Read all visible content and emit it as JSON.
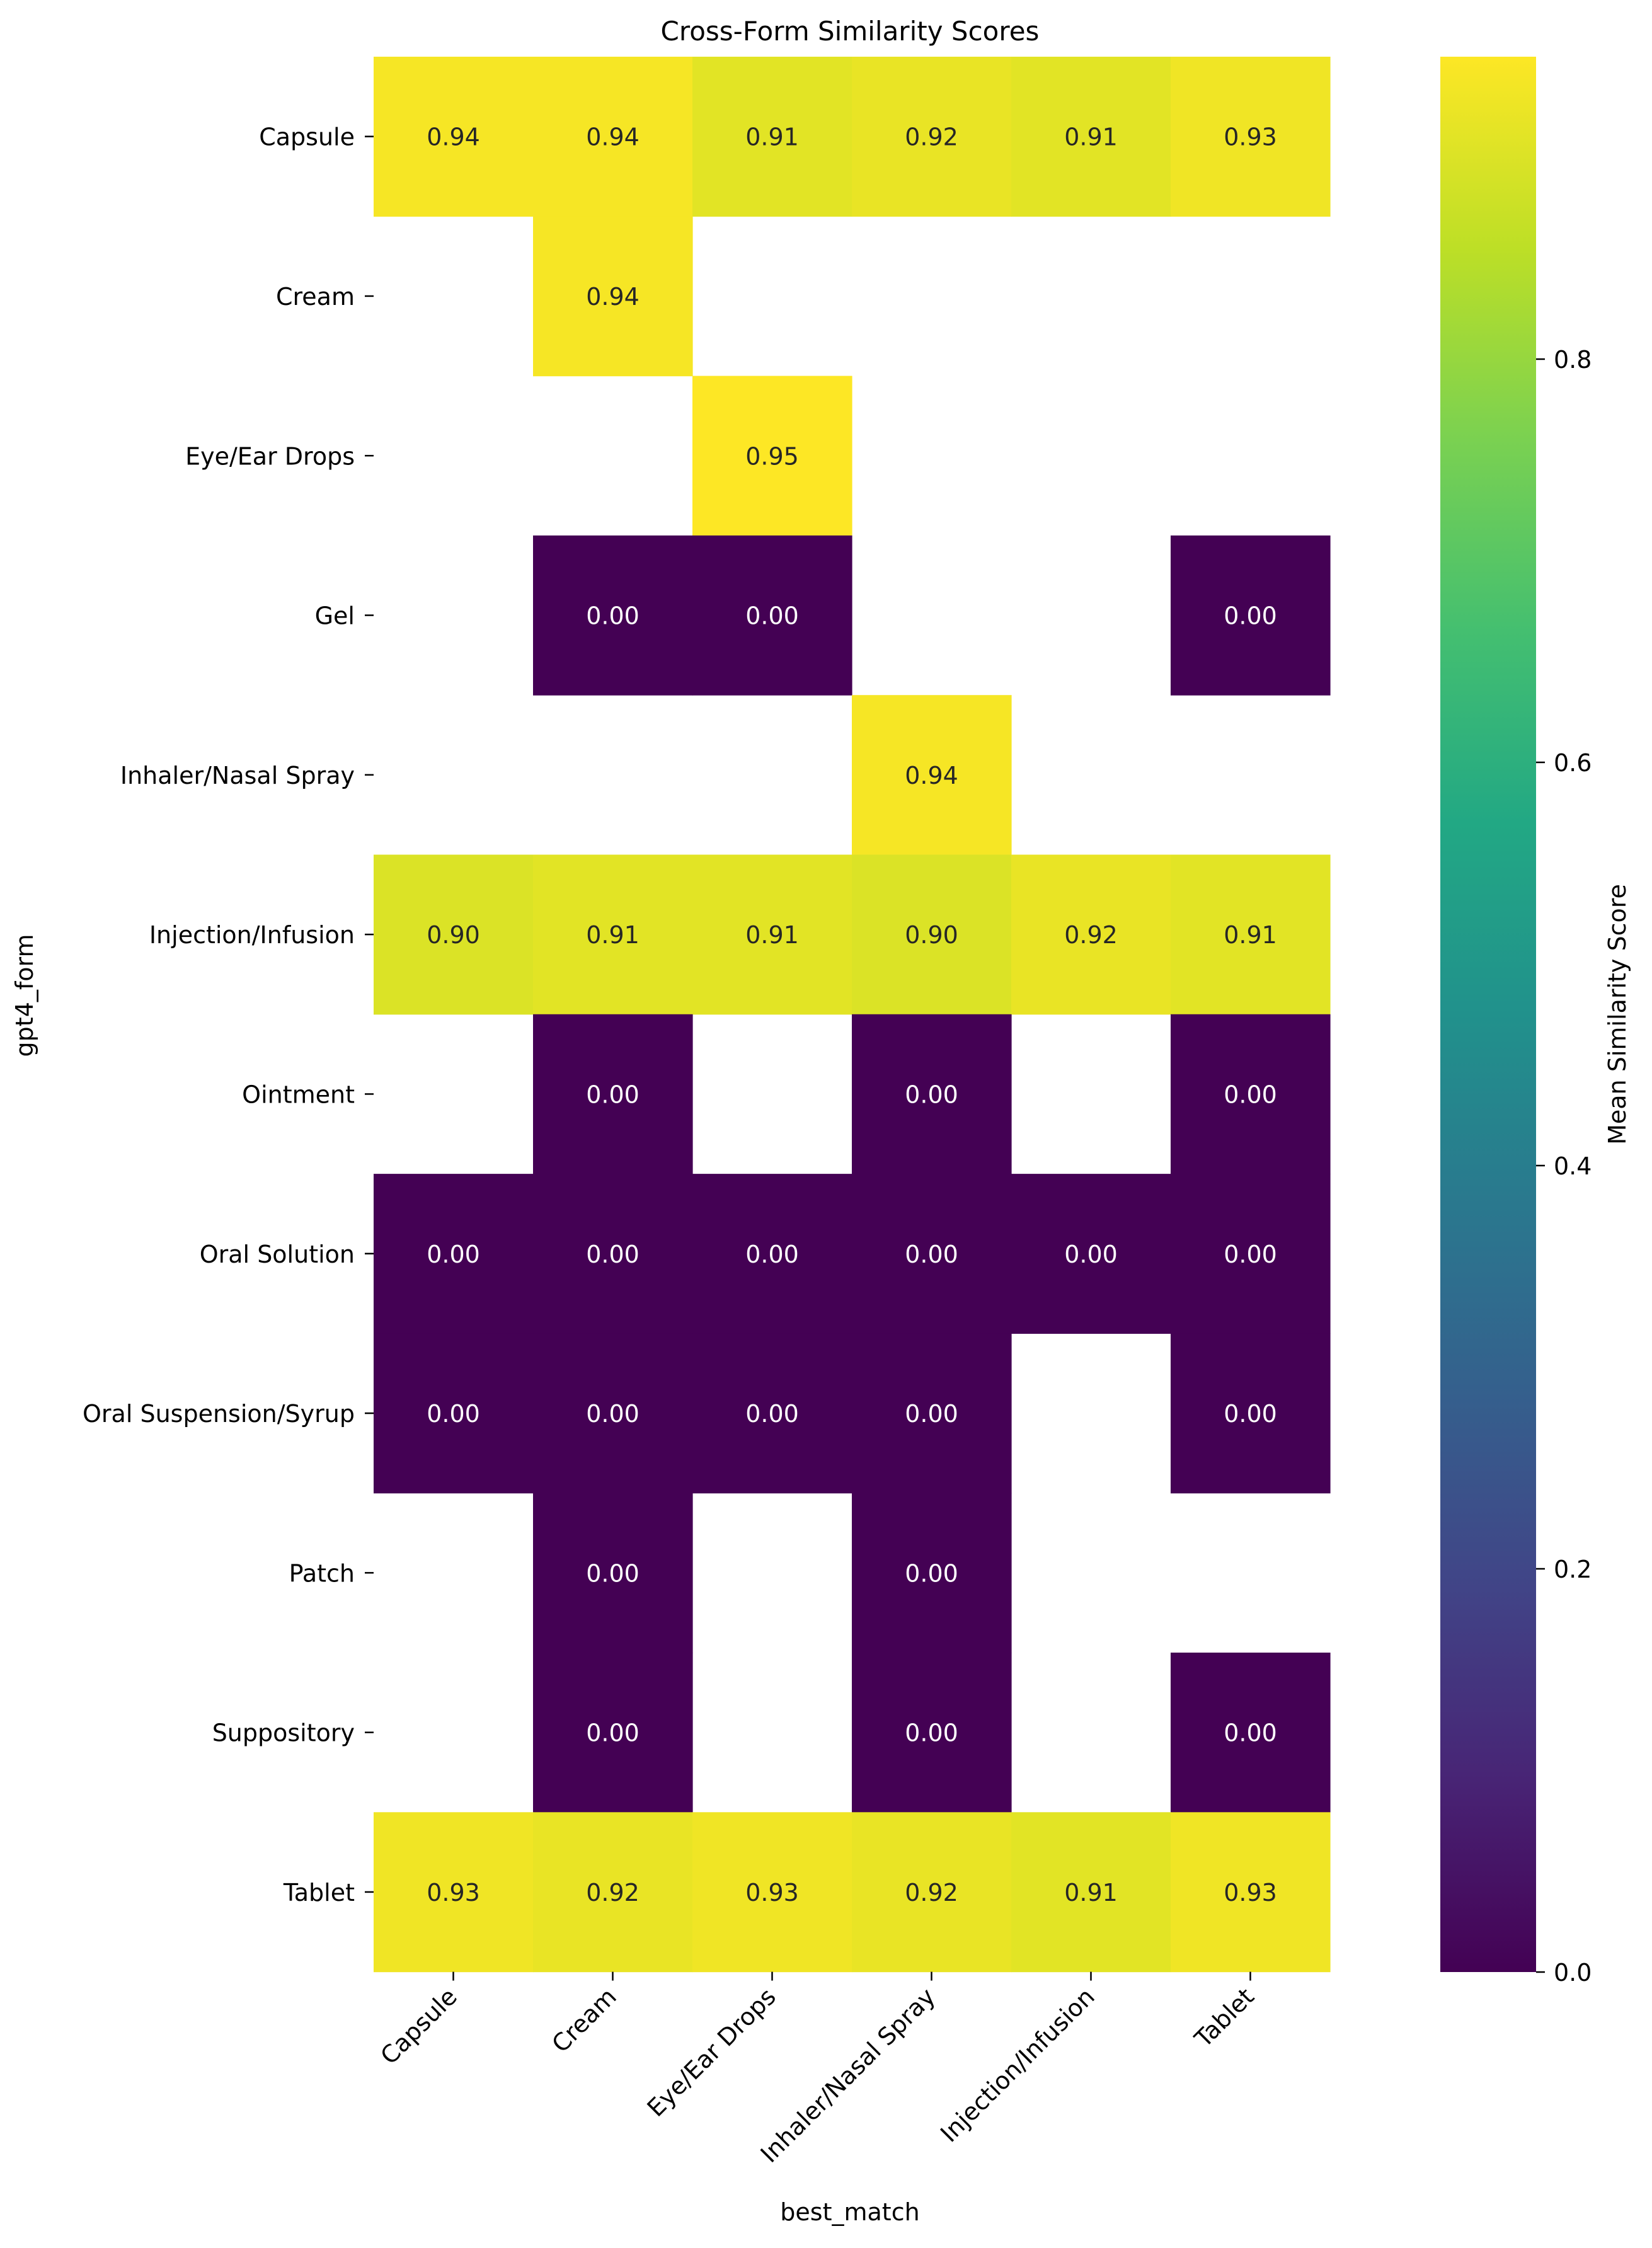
{
  "chart_data": {
    "type": "heatmap",
    "title": "Cross-Form Similarity Scores",
    "xlabel": "best_match",
    "ylabel": "gpt4_form",
    "x_categories": [
      "Capsule",
      "Cream",
      "Eye/Ear Drops",
      "Inhaler/Nasal Spray",
      "Injection/Infusion",
      "Tablet"
    ],
    "y_categories": [
      "Capsule",
      "Cream",
      "Eye/Ear Drops",
      "Gel",
      "Inhaler/Nasal Spray",
      "Injection/Infusion",
      "Ointment",
      "Oral Solution",
      "Oral Suspension/Syrup",
      "Patch",
      "Suppository",
      "Tablet"
    ],
    "values": [
      [
        0.94,
        0.94,
        0.91,
        0.92,
        0.91,
        0.93
      ],
      [
        null,
        0.94,
        null,
        null,
        null,
        null
      ],
      [
        null,
        null,
        0.95,
        null,
        null,
        null
      ],
      [
        null,
        0.0,
        0.0,
        null,
        null,
        0.0
      ],
      [
        null,
        null,
        null,
        0.94,
        null,
        null
      ],
      [
        0.9,
        0.91,
        0.91,
        0.9,
        0.92,
        0.91
      ],
      [
        null,
        0.0,
        null,
        0.0,
        null,
        0.0
      ],
      [
        0.0,
        0.0,
        0.0,
        0.0,
        0.0,
        0.0
      ],
      [
        0.0,
        0.0,
        0.0,
        0.0,
        null,
        0.0
      ],
      [
        null,
        0.0,
        null,
        0.0,
        null,
        null
      ],
      [
        null,
        0.0,
        null,
        0.0,
        null,
        0.0
      ],
      [
        0.93,
        0.92,
        0.93,
        0.92,
        0.91,
        0.93
      ]
    ],
    "value_format": "0.00",
    "colormap": "viridis",
    "colorbar": {
      "label": "Mean Similarity Score",
      "range": [
        0.0,
        0.95
      ],
      "ticks": [
        0.0,
        0.2,
        0.4,
        0.6,
        0.8
      ],
      "tick_labels": [
        "0.0",
        "0.2",
        "0.4",
        "0.6",
        "0.8"
      ]
    },
    "annotation_colors": {
      "dark_cell_text": "#ffffff",
      "light_cell_text": "#262626"
    },
    "grid": false,
    "legend": "colorbar right"
  }
}
